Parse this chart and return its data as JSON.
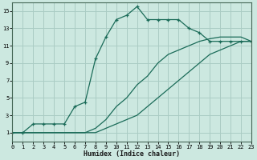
{
  "xlabel": "Humidex (Indice chaleur)",
  "bg_color": "#cce8e0",
  "grid_color": "#aaccC4",
  "line_color": "#1a6b58",
  "xlim": [
    0,
    23
  ],
  "ylim": [
    0,
    16
  ],
  "xticks": [
    0,
    1,
    2,
    3,
    4,
    5,
    6,
    7,
    8,
    9,
    10,
    11,
    12,
    13,
    14,
    15,
    16,
    17,
    18,
    19,
    20,
    21,
    22,
    23
  ],
  "yticks": [
    1,
    3,
    5,
    7,
    9,
    11,
    13,
    15
  ],
  "curve1_x": [
    0,
    1,
    2,
    3,
    4,
    5,
    6,
    7,
    8,
    9,
    10,
    11,
    12,
    13,
    14,
    15,
    16,
    17,
    18,
    19,
    20,
    21,
    22,
    23
  ],
  "curve1_y": [
    1,
    1,
    2,
    2,
    2,
    2,
    4,
    4.5,
    9.5,
    12,
    14,
    14.5,
    15.5,
    14,
    14,
    14,
    14,
    13,
    12.5,
    11.5,
    11.5,
    11.5,
    11.5,
    11.5
  ],
  "curve2_x": [
    0,
    1,
    2,
    3,
    4,
    5,
    6,
    7,
    8,
    9,
    10,
    11,
    12,
    13,
    14,
    15,
    16,
    17,
    18,
    19,
    20,
    21,
    22,
    23
  ],
  "curve2_y": [
    1,
    1,
    1,
    1,
    1,
    1,
    1,
    1,
    1.5,
    2.5,
    4,
    5,
    6.5,
    7.5,
    9,
    10,
    10.5,
    11,
    11.5,
    11.8,
    12,
    12,
    12,
    11.5
  ],
  "curve3_x": [
    0,
    1,
    2,
    3,
    4,
    5,
    6,
    7,
    8,
    9,
    10,
    11,
    12,
    13,
    14,
    15,
    16,
    17,
    18,
    19,
    20,
    21,
    22,
    23
  ],
  "curve3_y": [
    1,
    1,
    1,
    1,
    1,
    1,
    1,
    1,
    1,
    1.5,
    2,
    2.5,
    3,
    4,
    5,
    6,
    7,
    8,
    9,
    10,
    10.5,
    11,
    11.5,
    11.5
  ],
  "markers1_x": [
    0,
    1,
    2,
    3,
    4,
    5,
    6,
    7,
    8,
    9,
    10,
    11,
    12,
    13,
    14,
    15,
    16,
    17,
    18,
    19,
    20,
    21,
    22,
    23
  ],
  "markers1_y": [
    1,
    1,
    2,
    2,
    2,
    2,
    4,
    4.5,
    9.5,
    12,
    14,
    14.5,
    15.5,
    14,
    14,
    14,
    14,
    13,
    12.5,
    11.5,
    11.5,
    11.5,
    11.5,
    11.5
  ]
}
